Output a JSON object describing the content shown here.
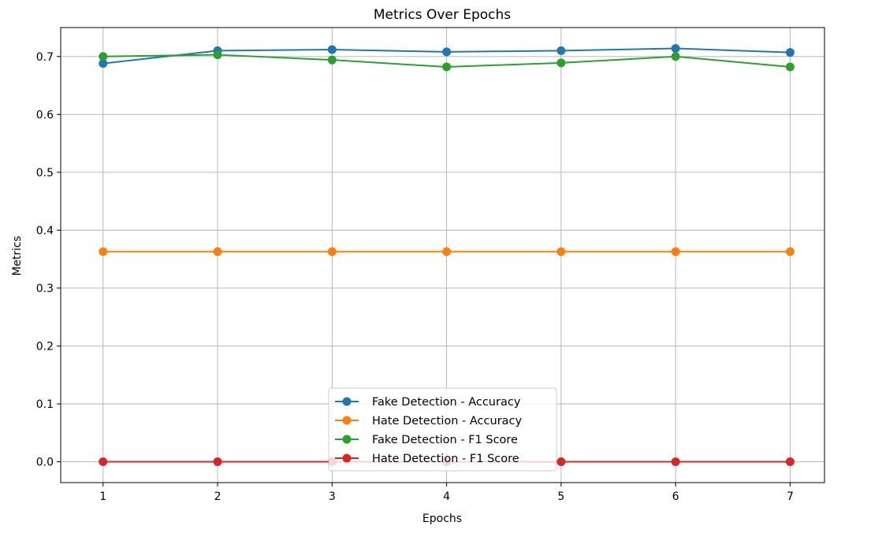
{
  "chart_data": {
    "type": "line",
    "title": "Metrics Over Epochs",
    "xlabel": "Epochs",
    "ylabel": "Metrics",
    "x": [
      1,
      2,
      3,
      4,
      5,
      6,
      7
    ],
    "xlim": [
      0.63,
      7.3
    ],
    "ylim": [
      -0.036,
      0.75
    ],
    "xticks": [
      "1",
      "2",
      "3",
      "4",
      "5",
      "6",
      "7"
    ],
    "yticks": [
      0.0,
      0.1,
      0.2,
      0.3,
      0.4,
      0.5,
      0.6,
      0.7
    ],
    "ytick_labels": [
      "0.0",
      "0.1",
      "0.2",
      "0.3",
      "0.4",
      "0.5",
      "0.6",
      "0.7"
    ],
    "grid": true,
    "legend_position": "bottom-center",
    "series": [
      {
        "name": "Fake Detection - Accuracy",
        "color": "#1f77b4",
        "values": [
          0.688,
          0.71,
          0.712,
          0.708,
          0.71,
          0.714,
          0.707
        ]
      },
      {
        "name": "Hate Detection - Accuracy",
        "color": "#ff7f0e",
        "values": [
          0.363,
          0.363,
          0.363,
          0.363,
          0.363,
          0.363,
          0.363
        ]
      },
      {
        "name": "Fake Detection - F1 Score",
        "color": "#2ca02c",
        "values": [
          0.7,
          0.703,
          0.694,
          0.682,
          0.689,
          0.7,
          0.682
        ]
      },
      {
        "name": "Hate Detection - F1 Score",
        "color": "#d62728",
        "values": [
          0.0,
          0.0,
          0.0,
          0.0,
          0.0,
          0.0,
          0.0
        ]
      }
    ]
  }
}
